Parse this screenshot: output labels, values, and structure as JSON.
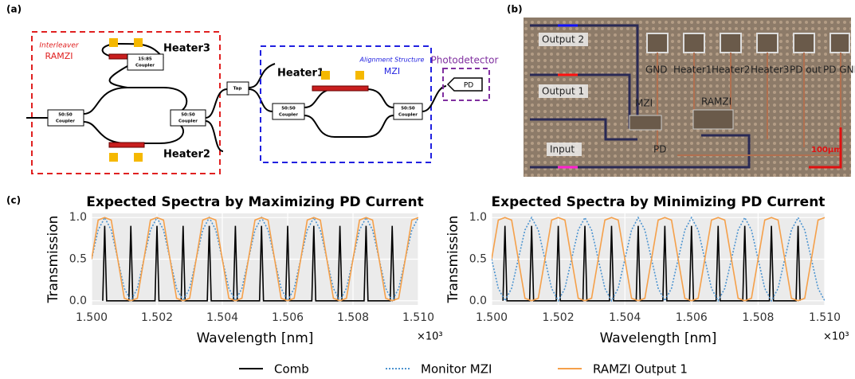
{
  "panel_a": {
    "label": "(a)",
    "interleaver": "Interleaver",
    "ramzi": "RAMZI",
    "heater3": "Heater3",
    "heater2": "Heater2",
    "heater1": "Heater1",
    "coupler_1585": [
      "15:85",
      "Coupler"
    ],
    "coupler_5050": [
      "50:50",
      "Coupler"
    ],
    "tap": "Tap",
    "alignment": "Alignment Structure",
    "mzi": "MZI",
    "photodetector": "Photodetector",
    "pd": "PD"
  },
  "panel_b": {
    "label": "(b)",
    "output2": "Output 2",
    "output1": "Output 1",
    "input": "Input",
    "pads": [
      "GND",
      "Heater1",
      "Heater2",
      "Heater3",
      "PD out",
      "PD GND"
    ],
    "mzi": "MZI",
    "ramzi": "RAMZI",
    "pd": "PD",
    "scale": "100μm"
  },
  "panel_c": {
    "label": "(c)"
  },
  "chart_data": [
    {
      "type": "line",
      "title": "Expected Spectra by Maximizing PD Current",
      "x_label": "Wavelength [nm]",
      "y_label": "Transmission",
      "x_offset_label": "×10³",
      "grid": true,
      "xlim": [
        1500,
        1510
      ],
      "ylim": [
        -0.05,
        1.05
      ],
      "xticks": [
        {
          "value": 1500,
          "label": "1.500"
        },
        {
          "value": 1502,
          "label": "1.502"
        },
        {
          "value": 1504,
          "label": "1.504"
        },
        {
          "value": 1506,
          "label": "1.506"
        },
        {
          "value": 1508,
          "label": "1.508"
        },
        {
          "value": 1510,
          "label": "1.510"
        }
      ],
      "yticks": [
        {
          "value": 0,
          "label": "0.0"
        },
        {
          "value": 0.5,
          "label": "0.5"
        },
        {
          "value": 1,
          "label": "1.0"
        }
      ],
      "x": [
        1500,
        1500.2,
        1500.4,
        1500.6,
        1500.8,
        1501,
        1501.2,
        1501.4,
        1501.6,
        1501.8,
        1502,
        1502.2,
        1502.4,
        1502.6,
        1502.8,
        1503,
        1503.2,
        1503.4,
        1503.6,
        1503.8,
        1504,
        1504.2,
        1504.4,
        1504.6,
        1504.8,
        1505,
        1505.2,
        1505.4,
        1505.6,
        1505.8,
        1506,
        1506.2,
        1506.4,
        1506.6,
        1506.8,
        1507,
        1507.2,
        1507.4,
        1507.6,
        1507.8,
        1508,
        1508.2,
        1508.4,
        1508.6,
        1508.8,
        1509,
        1509.2,
        1509.4,
        1509.6,
        1509.8,
        1510
      ],
      "series": [
        {
          "name": "Comb",
          "color": "#000000",
          "dashed": false,
          "x": [
            1500.34,
            1500.4,
            1500.46,
            1501.14,
            1501.2,
            1501.26,
            1501.94,
            1502,
            1502.06,
            1502.74,
            1502.8,
            1502.86,
            1503.54,
            1503.6,
            1503.66,
            1504.34,
            1504.4,
            1504.46,
            1505.14,
            1505.2,
            1505.26,
            1505.94,
            1506,
            1506.06,
            1506.74,
            1506.8,
            1506.86,
            1507.54,
            1507.6,
            1507.66,
            1508.34,
            1508.4,
            1508.46,
            1509.14,
            1509.2,
            1509.26
          ],
          "values": [
            0,
            0.9,
            0,
            0,
            0.9,
            0,
            0,
            0.9,
            0,
            0,
            0.9,
            0,
            0,
            0.9,
            0,
            0,
            0.9,
            0,
            0,
            0.9,
            0,
            0,
            0.9,
            0,
            0,
            0.9,
            0,
            0,
            0.9,
            0,
            0,
            0.9,
            0,
            0,
            0.9,
            0
          ]
        },
        {
          "name": "Monitor MZI",
          "color": "#4d94d0",
          "dashed": true,
          "values": [
            0.5,
            0.85,
            1,
            0.85,
            0.5,
            0.15,
            0,
            0.15,
            0.5,
            0.85,
            1,
            0.85,
            0.5,
            0.15,
            0,
            0.15,
            0.5,
            0.85,
            1,
            0.85,
            0.5,
            0.15,
            0,
            0.15,
            0.5,
            0.85,
            1,
            0.85,
            0.5,
            0.15,
            0,
            0.15,
            0.5,
            0.85,
            1,
            0.85,
            0.5,
            0.15,
            0,
            0.15,
            0.5,
            0.85,
            1,
            0.85,
            0.5,
            0.15,
            0,
            0.15,
            0.5,
            0.85,
            1
          ]
        },
        {
          "name": "RAMZI Output 1",
          "color": "#f5a04a",
          "dashed": false,
          "values": [
            0.5,
            0.97,
            1,
            0.97,
            0.5,
            0.03,
            0,
            0.03,
            0.5,
            0.97,
            1,
            0.97,
            0.5,
            0.03,
            0,
            0.03,
            0.5,
            0.97,
            1,
            0.97,
            0.5,
            0.03,
            0,
            0.03,
            0.5,
            0.97,
            1,
            0.97,
            0.5,
            0.03,
            0,
            0.03,
            0.5,
            0.97,
            1,
            0.97,
            0.5,
            0.03,
            0,
            0.03,
            0.5,
            0.97,
            1,
            0.97,
            0.5,
            0.03,
            0,
            0.03,
            0.5,
            0.97,
            1
          ]
        }
      ]
    },
    {
      "type": "line",
      "title": "Expected Spectra by Minimizing PD Current",
      "x_label": "Wavelength [nm]",
      "y_label": "Transmission",
      "x_offset_label": "×10³",
      "grid": true,
      "xlim": [
        1500,
        1510
      ],
      "ylim": [
        -0.05,
        1.05
      ],
      "xticks": [
        {
          "value": 1500,
          "label": "1.500"
        },
        {
          "value": 1502,
          "label": "1.502"
        },
        {
          "value": 1504,
          "label": "1.504"
        },
        {
          "value": 1506,
          "label": "1.506"
        },
        {
          "value": 1508,
          "label": "1.508"
        },
        {
          "value": 1510,
          "label": "1.510"
        }
      ],
      "yticks": [
        {
          "value": 0,
          "label": "0.0"
        },
        {
          "value": 0.5,
          "label": "0.5"
        },
        {
          "value": 1,
          "label": "1.0"
        }
      ],
      "x": [
        1500,
        1500.2,
        1500.4,
        1500.6,
        1500.8,
        1501,
        1501.2,
        1501.4,
        1501.6,
        1501.8,
        1502,
        1502.2,
        1502.4,
        1502.6,
        1502.8,
        1503,
        1503.2,
        1503.4,
        1503.6,
        1503.8,
        1504,
        1504.2,
        1504.4,
        1504.6,
        1504.8,
        1505,
        1505.2,
        1505.4,
        1505.6,
        1505.8,
        1506,
        1506.2,
        1506.4,
        1506.6,
        1506.8,
        1507,
        1507.2,
        1507.4,
        1507.6,
        1507.8,
        1508,
        1508.2,
        1508.4,
        1508.6,
        1508.8,
        1509,
        1509.2,
        1509.4,
        1509.6,
        1509.8,
        1510
      ],
      "series": [
        {
          "color": "#000000",
          "dashed": false,
          "x": [
            1500.34,
            1500.4,
            1500.46,
            1501.14,
            1501.2,
            1501.26,
            1501.94,
            1502,
            1502.06,
            1502.74,
            1502.8,
            1502.86,
            1503.54,
            1503.6,
            1503.66,
            1504.34,
            1504.4,
            1504.46,
            1505.14,
            1505.2,
            1505.26,
            1505.94,
            1506,
            1506.06,
            1506.74,
            1506.8,
            1506.86,
            1507.54,
            1507.6,
            1507.66,
            1508.34,
            1508.4,
            1508.46,
            1509.14,
            1509.2,
            1509.26
          ],
          "values": [
            0,
            0.9,
            0,
            0,
            0.9,
            0,
            0,
            0.9,
            0,
            0,
            0.9,
            0,
            0,
            0.9,
            0,
            0,
            0.9,
            0,
            0,
            0.9,
            0,
            0,
            0.9,
            0,
            0,
            0.9,
            0,
            0,
            0.9,
            0,
            0,
            0.9,
            0,
            0,
            0.9,
            0
          ]
        },
        {
          "color": "#4d94d0",
          "dashed": true,
          "values": [
            0.5,
            0.15,
            0,
            0.15,
            0.5,
            0.85,
            1,
            0.85,
            0.5,
            0.15,
            0,
            0.15,
            0.5,
            0.85,
            1,
            0.85,
            0.5,
            0.15,
            0,
            0.15,
            0.5,
            0.85,
            1,
            0.85,
            0.5,
            0.15,
            0,
            0.15,
            0.5,
            0.85,
            1,
            0.85,
            0.5,
            0.15,
            0,
            0.15,
            0.5,
            0.85,
            1,
            0.85,
            0.5,
            0.15,
            0,
            0.15,
            0.5,
            0.85,
            1,
            0.85,
            0.5,
            0.15,
            0
          ]
        },
        {
          "color": "#f5a04a",
          "dashed": false,
          "values": [
            0.5,
            0.97,
            1,
            0.97,
            0.5,
            0.03,
            0,
            0.03,
            0.5,
            0.97,
            1,
            0.97,
            0.5,
            0.03,
            0,
            0.03,
            0.5,
            0.97,
            1,
            0.97,
            0.5,
            0.03,
            0,
            0.03,
            0.5,
            0.97,
            1,
            0.97,
            0.5,
            0.03,
            0,
            0.03,
            0.5,
            0.97,
            1,
            0.97,
            0.5,
            0.03,
            0,
            0.03,
            0.5,
            0.97,
            1,
            0.97,
            0.5,
            0.03,
            0,
            0.03,
            0.5,
            0.97,
            1
          ]
        }
      ]
    }
  ]
}
